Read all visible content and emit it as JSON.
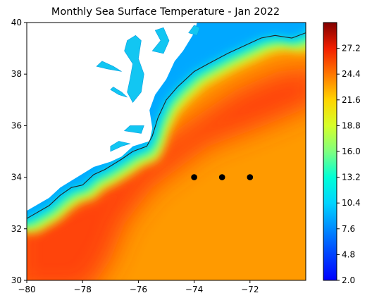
{
  "chart_data": {
    "type": "heatmap",
    "title": "Monthly Sea Surface Temperature - Jan 2022",
    "xlim": [
      -80,
      -70
    ],
    "ylim": [
      30,
      40
    ],
    "x_ticks": [
      -80,
      -78,
      -76,
      -74,
      -72
    ],
    "x_tick_labels": [
      "−80",
      "−78",
      "−76",
      "−74",
      "−72"
    ],
    "y_ticks": [
      30,
      32,
      34,
      36,
      38,
      40
    ],
    "y_tick_labels": [
      "30",
      "32",
      "34",
      "36",
      "38",
      "40"
    ],
    "colorbar": {
      "colormap": "jet",
      "range": [
        2.0,
        30.0
      ],
      "ticks": [
        2.0,
        4.8,
        7.6,
        10.4,
        13.2,
        16.0,
        18.8,
        21.6,
        24.4,
        27.2
      ],
      "tick_labels": [
        "2.0",
        "4.8",
        "7.6",
        "10.4",
        "13.2",
        "16.0",
        "18.8",
        "21.6",
        "24.4",
        "27.2"
      ]
    },
    "points": [
      {
        "lon": -74,
        "lat": 34
      },
      {
        "lon": -73,
        "lat": 34
      },
      {
        "lon": -72,
        "lat": 34
      }
    ],
    "coastline": [
      [
        -80,
        32.4
      ],
      [
        -79.2,
        32.9
      ],
      [
        -78.8,
        33.3
      ],
      [
        -78.4,
        33.6
      ],
      [
        -78,
        33.7
      ],
      [
        -77.6,
        34.1
      ],
      [
        -77.2,
        34.3
      ],
      [
        -76.6,
        34.7
      ],
      [
        -76.2,
        35.0
      ],
      [
        -75.7,
        35.2
      ],
      [
        -75.5,
        35.6
      ],
      [
        -75.3,
        36.3
      ],
      [
        -75.0,
        37.0
      ],
      [
        -74.6,
        37.5
      ],
      [
        -74.0,
        38.1
      ],
      [
        -73.5,
        38.4
      ],
      [
        -72.8,
        38.8
      ],
      [
        -72.2,
        39.1
      ],
      [
        -71.6,
        39.4
      ],
      [
        -71.1,
        39.5
      ],
      [
        -70.5,
        39.4
      ],
      [
        -70,
        39.6
      ]
    ],
    "land_mask": [
      [
        -80,
        32.7
      ],
      [
        -79.2,
        33.2
      ],
      [
        -78.8,
        33.6
      ],
      [
        -78.2,
        34.0
      ],
      [
        -77.6,
        34.4
      ],
      [
        -77.0,
        34.6
      ],
      [
        -76.6,
        34.8
      ],
      [
        -76.2,
        35.2
      ],
      [
        -75.6,
        35.4
      ],
      [
        -75.5,
        35.9
      ],
      [
        -75.6,
        36.6
      ],
      [
        -75.4,
        37.2
      ],
      [
        -75.0,
        37.8
      ],
      [
        -74.7,
        38.5
      ],
      [
        -74.4,
        38.9
      ],
      [
        -74.0,
        39.6
      ],
      [
        -73.9,
        40
      ],
      [
        -80,
        40
      ]
    ],
    "bays": [
      [
        [
          -76.2,
          36.9
        ],
        [
          -76.4,
          37.3
        ],
        [
          -76.3,
          37.8
        ],
        [
          -76.2,
          38.4
        ],
        [
          -76.5,
          38.9
        ],
        [
          -76.4,
          39.3
        ],
        [
          -76.1,
          39.5
        ],
        [
          -75.9,
          39.3
        ],
        [
          -76.0,
          38.6
        ],
        [
          -75.8,
          38.0
        ],
        [
          -75.9,
          37.3
        ]
      ],
      [
        [
          -75.5,
          38.9
        ],
        [
          -75.2,
          39.3
        ],
        [
          -75.4,
          39.7
        ],
        [
          -75.1,
          39.8
        ],
        [
          -74.9,
          39.3
        ],
        [
          -75.1,
          38.8
        ]
      ],
      [
        [
          -77.5,
          38.3
        ],
        [
          -77.1,
          38.2
        ],
        [
          -76.6,
          38.1
        ],
        [
          -76.9,
          38.3
        ],
        [
          -77.3,
          38.5
        ]
      ],
      [
        [
          -77.0,
          37.4
        ],
        [
          -76.7,
          37.2
        ],
        [
          -76.4,
          37.1
        ],
        [
          -76.6,
          37.3
        ],
        [
          -76.9,
          37.5
        ]
      ],
      [
        [
          -76.5,
          35.8
        ],
        [
          -75.9,
          35.7
        ],
        [
          -75.8,
          36.0
        ],
        [
          -76.3,
          36.0
        ]
      ],
      [
        [
          -77.0,
          35.0
        ],
        [
          -76.6,
          35.2
        ],
        [
          -76.3,
          35.3
        ],
        [
          -76.7,
          35.4
        ],
        [
          -77.0,
          35.2
        ]
      ],
      [
        [
          -73.9,
          39.5
        ],
        [
          -74.2,
          39.6
        ],
        [
          -74.0,
          39.9
        ],
        [
          -73.8,
          39.8
        ]
      ]
    ],
    "background_color": "#ff9a00",
    "warm_core_color": "#ff3a0c"
  }
}
